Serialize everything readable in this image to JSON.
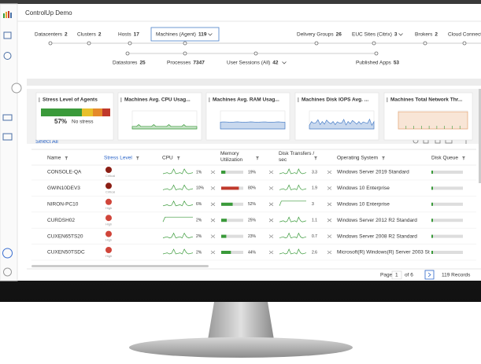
{
  "app": {
    "title": "ControlUp Demo"
  },
  "topology": {
    "upper": [
      {
        "label": "Datacenters",
        "count": 2
      },
      {
        "label": "Clusters",
        "count": 2
      },
      {
        "label": "Hosts",
        "count": 17
      },
      {
        "label": "Machines (Agent)",
        "count": 119,
        "selected": true,
        "dropdown": true
      },
      {
        "label": "Delivery Groups",
        "count": 26
      },
      {
        "label": "EUC Sites (Citrix)",
        "count": 3,
        "dropdown": true
      },
      {
        "label": "Brokers",
        "count": 2
      },
      {
        "label": "Cloud Connect"
      }
    ],
    "lower": [
      {
        "label": "Datastores",
        "count": 25
      },
      {
        "label": "Processes",
        "count": 7347
      },
      {
        "label": "User Sessions (All)",
        "count": 42,
        "dropdown": true
      },
      {
        "label": "Published Apps",
        "count": 53
      }
    ]
  },
  "cards": [
    {
      "title": "Stress Level of Agents"
    },
    {
      "title": "Machines Avg. CPU Usag...",
      "color": "#3a9a3a"
    },
    {
      "title": "Machines Avg. RAM Usag...",
      "color": "#4a7fc8"
    },
    {
      "title": "Machines Disk IOPS Avg. ...",
      "color": "#4a7fc8"
    },
    {
      "title": "Machines Total Network Thr...",
      "color": "#e8a878"
    }
  ],
  "stress": {
    "percent": "57%",
    "status": "No stress"
  },
  "toolbar": {
    "select_all": "Select All"
  },
  "table": {
    "columns": [
      "Name",
      "Stress Level",
      "CPU",
      "Memory Utilization",
      "Disk Transfers / sec",
      "Operating System",
      "Disk Queue"
    ],
    "rows": [
      {
        "name": "CONSOLE-QA",
        "stress": "Critical",
        "stress_color": "#8b1e14",
        "cpu": "1%",
        "memory": 19,
        "memory_label": "19%",
        "memory_color": "#3a9a3a",
        "disk": "3.3",
        "os": "Windows Server 2019 Standard"
      },
      {
        "name": "GWIN10DEV3",
        "stress": "Critical",
        "stress_color": "#8b1e14",
        "cpu": "10%",
        "memory": 80,
        "memory_label": "80%",
        "memory_color": "#c0392b",
        "disk": "1.9",
        "os": "Windows 10 Enterprise"
      },
      {
        "name": "NIRON-PC10",
        "stress": "High",
        "stress_color": "#d0453a",
        "cpu": "6%",
        "memory": 52,
        "memory_label": "52%",
        "memory_color": "#3a9a3a",
        "disk": "3",
        "os": "Windows 10 Enterprise"
      },
      {
        "name": "CURDSH02",
        "stress": "High",
        "stress_color": "#d0453a",
        "cpu": "2%",
        "memory": 25,
        "memory_label": "25%",
        "memory_color": "#3a9a3a",
        "disk": "1.1",
        "os": "Windows Server 2012 R2 Standard"
      },
      {
        "name": "CUXEN65TS20",
        "stress": "High",
        "stress_color": "#d0453a",
        "cpu": "2%",
        "memory": 23,
        "memory_label": "23%",
        "memory_color": "#3a9a3a",
        "disk": "0.7",
        "os": "Windows Server 2008 R2 Standard"
      },
      {
        "name": "CUXEN50TSDC",
        "stress": "High",
        "stress_color": "#d0453a",
        "cpu": "2%",
        "memory": 44,
        "memory_label": "44%",
        "memory_color": "#3a9a3a",
        "disk": "2.6",
        "os": "Microsoft(R) Windows(R) Server 2003 St"
      }
    ]
  },
  "pager": {
    "label": "Page",
    "page": 1,
    "of": "of 6",
    "records": "119 Records"
  }
}
